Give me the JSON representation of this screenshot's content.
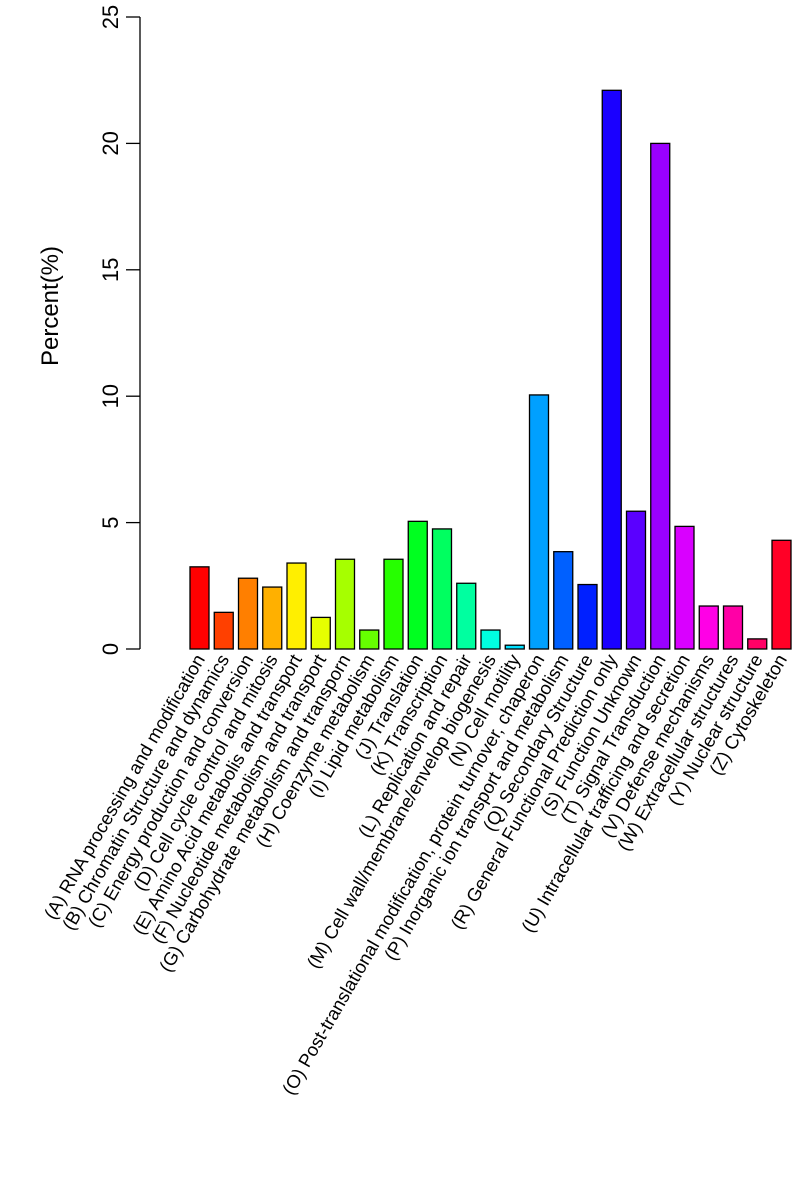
{
  "chart_data": {
    "type": "bar",
    "ylabel": "Percent(%)",
    "xlabel": "",
    "ylim": [
      0,
      25
    ],
    "yticks": [
      0,
      5,
      10,
      15,
      20,
      25
    ],
    "grid": false,
    "legend": "none",
    "categories": [
      "(A) RNA processing and modification",
      "(B) Chromatin Structure and dynamics",
      "(C) Energy production and conversion",
      "(D) Cell cycle control and mitosis",
      "(E) Amino Acid metabolis and transport",
      "(F) Nucleotide metabolism and transport",
      "(G) Carbohydrate metabolism and transporn",
      "(H) Coenzyme metabolism",
      "(I) Lipid metabolism",
      "(J) Translation",
      "(K) Transcription",
      "(L) Replication and repair",
      "(M) Cell wall/membrane/envelop biogenesis",
      "(N) Cell motility",
      "(O) Post-translational modification, protein turnover, chaperon",
      "(P) Inorganic ion transport and metabolism",
      "(Q) Secondary Structure",
      "(R) General Functional Prediction only",
      "(S) Function Unknown",
      "(T) Signal Transduction",
      "(U) Intracellular trafficing and secretion",
      "(V) Defense mechanisms",
      "(W) Extracellular structures",
      "(Y) Nuclear structure",
      "(Z) Cytoskeleton"
    ],
    "values": [
      3.25,
      1.45,
      2.8,
      2.45,
      3.4,
      1.25,
      3.55,
      0.75,
      3.55,
      5.05,
      4.75,
      2.6,
      0.75,
      0.15,
      10.05,
      3.85,
      2.55,
      22.1,
      5.45,
      20.0,
      4.85,
      1.7,
      1.7,
      0.4,
      4.3
    ],
    "colors": [
      "#ff0000",
      "#ff4000",
      "#ff7f00",
      "#ffb000",
      "#ffef00",
      "#e6ff00",
      "#a6ff00",
      "#66ff00",
      "#26ff00",
      "#00ff20",
      "#00ff60",
      "#00ffa0",
      "#00ffe0",
      "#00e0ff",
      "#00a0ff",
      "#0060ff",
      "#0020ff",
      "#1a00ff",
      "#5a00ff",
      "#9a00ff",
      "#d900ff",
      "#ff00e6",
      "#ff00a6",
      "#ff0066",
      "#ff0026"
    ]
  }
}
